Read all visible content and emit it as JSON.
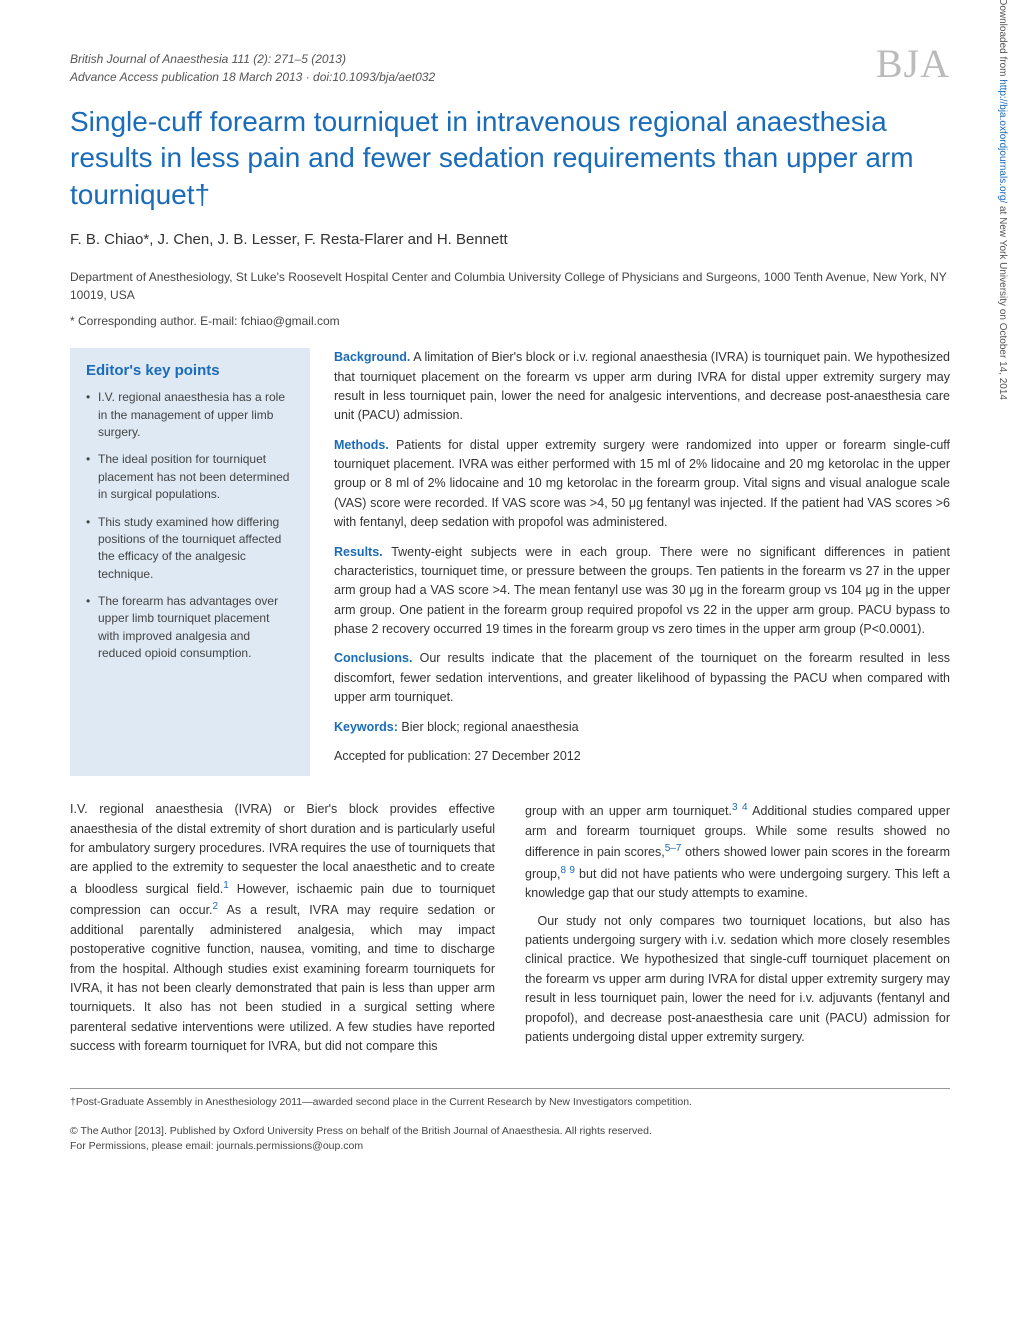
{
  "meta": {
    "journal_line": "British Journal of Anaesthesia 111 (2): 271–5 (2013)",
    "advance_line": "Advance Access publication 18 March 2013 · doi:10.1093/bja/aet032",
    "logo": "BJA"
  },
  "title": "Single-cuff forearm tourniquet in intravenous regional anaesthesia results in less pain and fewer sedation requirements than upper arm tourniquet†",
  "authors": "F. B. Chiao*, J. Chen, J. B. Lesser, F. Resta-Flarer and H. Bennett",
  "affiliation": "Department of Anesthesiology, St Luke's Roosevelt Hospital Center and Columbia University College of Physicians and Surgeons, 1000 Tenth Avenue, New York, NY 10019, USA",
  "corresponding": "* Corresponding author. E-mail: fchiao@gmail.com",
  "editors": {
    "heading": "Editor's key points",
    "points": [
      "I.V. regional anaesthesia has a role in the management of upper limb surgery.",
      "The ideal position for tourniquet placement has not been determined in surgical populations.",
      "This study examined how differing positions of the tourniquet affected the efficacy of the analgesic technique.",
      "The forearm has advantages over upper limb tourniquet placement with improved analgesia and reduced opioid consumption."
    ]
  },
  "abstract": {
    "background_label": "Background.",
    "background": " A limitation of Bier's block or i.v. regional anaesthesia (IVRA) is tourniquet pain. We hypothesized that tourniquet placement on the forearm vs upper arm during IVRA for distal upper extremity surgery may result in less tourniquet pain, lower the need for analgesic interventions, and decrease post-anaesthesia care unit (PACU) admission.",
    "methods_label": "Methods.",
    "methods": " Patients for distal upper extremity surgery were randomized into upper or forearm single-cuff tourniquet placement. IVRA was either performed with 15 ml of 2% lidocaine and 20 mg ketorolac in the upper group or 8 ml of 2% lidocaine and 10 mg ketorolac in the forearm group. Vital signs and visual analogue scale (VAS) score were recorded. If VAS score was >4, 50 μg fentanyl was injected. If the patient had VAS scores >6 with fentanyl, deep sedation with propofol was administered.",
    "results_label": "Results.",
    "results": " Twenty-eight subjects were in each group. There were no significant differences in patient characteristics, tourniquet time, or pressure between the groups. Ten patients in the forearm vs 27 in the upper arm group had a VAS score >4. The mean fentanyl use was 30 μg in the forearm group vs 104 μg in the upper arm group. One patient in the forearm group required propofol vs 22 in the upper arm group. PACU bypass to phase 2 recovery occurred 19 times in the forearm group vs zero times in the upper arm group (P<0.0001).",
    "conclusions_label": "Conclusions.",
    "conclusions": " Our results indicate that the placement of the tourniquet on the forearm resulted in less discomfort, fewer sedation interventions, and greater likelihood of bypassing the PACU when compared with upper arm tourniquet.",
    "keywords_label": "Keywords:",
    "keywords": " Bier block; regional anaesthesia",
    "accepted": "Accepted for publication: 27 December 2012"
  },
  "body": {
    "col1p1a": "I.V. regional anaesthesia (IVRA) or Bier's block provides effective anaesthesia of the distal extremity of short duration and is particularly useful for ambulatory surgery procedures. IVRA requires the use of tourniquets that are applied to the extremity to sequester the local anaesthetic and to create a bloodless surgical field.",
    "ref1": "1",
    "col1p1b": " However, ischaemic pain due to tourniquet compression can occur.",
    "ref2": "2",
    "col1p1c": " As a result, IVRA may require sedation or additional parentally administered analgesia, which may impact postoperative cognitive function, nausea, vomiting, and time to discharge from the hospital. Although studies exist examining forearm tourniquets for IVRA, it has not been clearly demonstrated that pain is less than upper arm tourniquets. It also has not been studied in a surgical setting where parenteral sedative interventions were utilized. A few studies have reported success with forearm tourniquet for IVRA, but did not compare this",
    "col2p1a": "group with an upper arm tourniquet.",
    "ref34": "3 4",
    "col2p1b": " Additional studies compared upper arm and forearm tourniquet groups. While some results showed no difference in pain scores,",
    "ref57": "5–7",
    "col2p1c": " others showed lower pain scores in the forearm group,",
    "ref89": "8 9",
    "col2p1d": " but did not have patients who were undergoing surgery. This left a knowledge gap that our study attempts to examine.",
    "col2p2": "Our study not only compares two tourniquet locations, but also has patients undergoing surgery with i.v. sedation which more closely resembles clinical practice. We hypothesized that single-cuff tourniquet placement on the forearm vs upper arm during IVRA for distal upper extremity surgery may result in less tourniquet pain, lower the need for i.v. adjuvants (fentanyl and propofol), and decrease post-anaesthesia care unit (PACU) admission for patients undergoing distal upper extremity surgery."
  },
  "footnote": "†Post-Graduate Assembly in Anesthesiology 2011—awarded second place in the Current Research by New Investigators competition.",
  "copyright1": "© The Author [2013]. Published by Oxford University Press on behalf of the British Journal of Anaesthesia. All rights reserved.",
  "copyright2": "For Permissions, please email: journals.permissions@oup.com",
  "sidetext": {
    "pre": "Downloaded from ",
    "link": "http://bja.oxfordjournals.org/",
    "post": " at New York University on October 14, 2014"
  },
  "colors": {
    "accent": "#1a6bb8",
    "editors_bg": "#dee9f4",
    "logo": "#bbb"
  }
}
